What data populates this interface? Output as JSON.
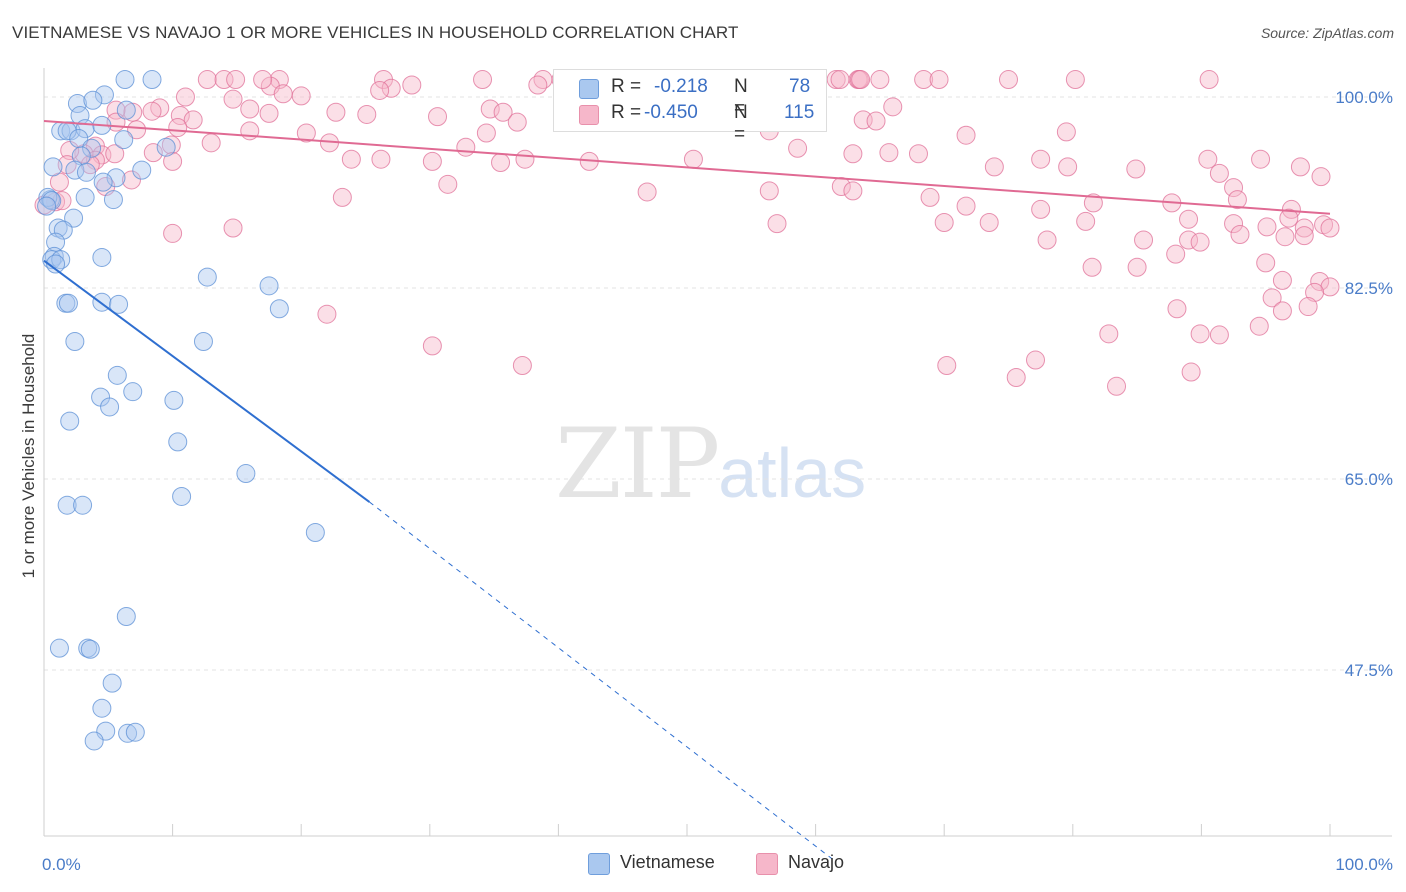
{
  "header": {
    "title": "VIETNAMESE VS NAVAJO 1 OR MORE VEHICLES IN HOUSEHOLD CORRELATION CHART",
    "source": "Source: ZipAtlas.com"
  },
  "watermark": {
    "zip": "ZIP",
    "atlas": "atlas"
  },
  "legend": {
    "rows": [
      {
        "r_label": "R =",
        "r_value": "-0.218",
        "n_label": "N =",
        "n_value": "78",
        "color": "#aac8ef"
      },
      {
        "r_label": "R =",
        "r_value": "-0.450",
        "n_label": "N =",
        "n_value": "115",
        "color": "#f6b7ca"
      }
    ]
  },
  "bottom_legend": [
    "Vietnamese",
    "Navajo"
  ],
  "chart_data": {
    "type": "scatter",
    "title": "VIETNAMESE VS NAVAJO 1 OR MORE VEHICLES IN HOUSEHOLD CORRELATION CHART",
    "xlabel": "",
    "ylabel": "1 or more Vehicles in Household",
    "xlim": [
      0,
      100
    ],
    "ylim": [
      30,
      100
    ],
    "x_tick_labels": [
      "0.0%",
      "100.0%"
    ],
    "y_ticks": [
      47.5,
      65.0,
      82.5,
      100.0
    ],
    "y_tick_labels": [
      "47.5%",
      "65.0%",
      "82.5%",
      "100.0%"
    ],
    "grid": true,
    "legend_position": "top-center",
    "series": [
      {
        "name": "Vietnamese",
        "color": "#5b8fd6",
        "fill": "#aac8ef",
        "trend": {
          "x": [
            0,
            25.3
          ],
          "y": [
            85.0,
            62.9
          ],
          "dash_to": [
            61.5,
            30.0
          ]
        },
        "points": [
          [
            6.3,
            101.6
          ],
          [
            8.4,
            101.6
          ],
          [
            4.7,
            100.2
          ],
          [
            2.6,
            99.4
          ],
          [
            3.8,
            99.7
          ],
          [
            2.8,
            98.3
          ],
          [
            6.4,
            98.8
          ],
          [
            1.3,
            96.9
          ],
          [
            2.1,
            96.9
          ],
          [
            3.2,
            97.1
          ],
          [
            1.8,
            96.9
          ],
          [
            2.7,
            96.2
          ],
          [
            4.5,
            97.4
          ],
          [
            6.2,
            96.1
          ],
          [
            3.7,
            95.3
          ],
          [
            9.5,
            95.4
          ],
          [
            2.9,
            94.6
          ],
          [
            0.7,
            93.6
          ],
          [
            2.4,
            93.3
          ],
          [
            5.6,
            92.6
          ],
          [
            7.6,
            93.3
          ],
          [
            4.6,
            92.2
          ],
          [
            3.3,
            93.1
          ],
          [
            0.5,
            90.6
          ],
          [
            0.3,
            90.8
          ],
          [
            0.6,
            90.5
          ],
          [
            3.2,
            90.8
          ],
          [
            5.4,
            90.6
          ],
          [
            0.2,
            90.0
          ],
          [
            1.1,
            88.0
          ],
          [
            2.3,
            88.9
          ],
          [
            1.5,
            87.8
          ],
          [
            0.9,
            86.7
          ],
          [
            4.5,
            85.3
          ],
          [
            0.8,
            85.4
          ],
          [
            0.6,
            85.1
          ],
          [
            1.3,
            85.1
          ],
          [
            0.9,
            84.7
          ],
          [
            12.7,
            83.5
          ],
          [
            17.5,
            82.7
          ],
          [
            1.7,
            81.1
          ],
          [
            1.9,
            81.1
          ],
          [
            4.5,
            81.2
          ],
          [
            5.8,
            81.0
          ],
          [
            18.3,
            80.6
          ],
          [
            2.4,
            77.6
          ],
          [
            12.4,
            77.6
          ],
          [
            5.7,
            74.5
          ],
          [
            4.4,
            72.5
          ],
          [
            6.9,
            73.0
          ],
          [
            10.1,
            72.2
          ],
          [
            5.1,
            71.6
          ],
          [
            2.0,
            70.3
          ],
          [
            10.4,
            68.4
          ],
          [
            15.7,
            65.5
          ],
          [
            10.7,
            63.4
          ],
          [
            1.8,
            62.6
          ],
          [
            3.0,
            62.6
          ],
          [
            21.1,
            60.1
          ],
          [
            6.4,
            52.4
          ],
          [
            1.2,
            49.5
          ],
          [
            3.4,
            49.5
          ],
          [
            3.6,
            49.4
          ],
          [
            5.3,
            46.3
          ],
          [
            4.5,
            44.0
          ],
          [
            4.8,
            41.9
          ],
          [
            6.5,
            41.7
          ],
          [
            7.1,
            41.8
          ],
          [
            3.9,
            41.0
          ]
        ]
      },
      {
        "name": "Navajo",
        "color": "#e07098",
        "fill": "#f6b7ca",
        "trend": {
          "x": [
            0,
            100
          ],
          "y": [
            97.8,
            89.3
          ]
        },
        "points": [
          [
            12.7,
            101.6
          ],
          [
            14.0,
            101.6
          ],
          [
            14.9,
            101.6
          ],
          [
            18.3,
            101.6
          ],
          [
            17.6,
            101.0
          ],
          [
            17.0,
            101.6
          ],
          [
            26.4,
            101.6
          ],
          [
            28.6,
            101.1
          ],
          [
            34.1,
            101.6
          ],
          [
            38.8,
            101.6
          ],
          [
            42.0,
            101.6
          ],
          [
            40.2,
            101.6
          ],
          [
            52.2,
            101.6
          ],
          [
            54.0,
            101.6
          ],
          [
            61.6,
            101.6
          ],
          [
            61.9,
            101.6
          ],
          [
            63.3,
            101.6
          ],
          [
            63.4,
            101.6
          ],
          [
            65.0,
            101.6
          ],
          [
            68.4,
            101.6
          ],
          [
            69.6,
            101.6
          ],
          [
            75.0,
            101.6
          ],
          [
            80.2,
            101.6
          ],
          [
            90.6,
            101.6
          ],
          [
            40.3,
            101.6
          ],
          [
            55.7,
            101.6
          ],
          [
            63.5,
            101.6
          ],
          [
            55.6,
            101.6
          ],
          [
            50.2,
            101.6
          ],
          [
            43.0,
            101.6
          ],
          [
            27.0,
            100.8
          ],
          [
            26.1,
            100.6
          ],
          [
            38.4,
            101.1
          ],
          [
            18.6,
            100.3
          ],
          [
            20.0,
            100.1
          ],
          [
            14.7,
            99.8
          ],
          [
            11.0,
            100.0
          ],
          [
            17.5,
            98.5
          ],
          [
            16.0,
            98.9
          ],
          [
            9.0,
            99.0
          ],
          [
            10.6,
            98.3
          ],
          [
            8.4,
            98.7
          ],
          [
            6.9,
            98.6
          ],
          [
            5.6,
            98.8
          ],
          [
            5.6,
            97.7
          ],
          [
            11.6,
            97.9
          ],
          [
            22.7,
            98.6
          ],
          [
            25.1,
            98.4
          ],
          [
            30.6,
            98.2
          ],
          [
            34.7,
            98.9
          ],
          [
            35.7,
            98.6
          ],
          [
            36.8,
            97.7
          ],
          [
            10.4,
            97.2
          ],
          [
            7.2,
            97.0
          ],
          [
            16.0,
            96.9
          ],
          [
            20.4,
            96.7
          ],
          [
            34.4,
            96.7
          ],
          [
            56.4,
            96.9
          ],
          [
            58.5,
            97.7
          ],
          [
            63.7,
            97.9
          ],
          [
            64.7,
            97.8
          ],
          [
            66.0,
            99.1
          ],
          [
            71.7,
            96.5
          ],
          [
            79.5,
            96.8
          ],
          [
            4.0,
            95.5
          ],
          [
            9.9,
            95.6
          ],
          [
            13.0,
            95.8
          ],
          [
            22.2,
            95.8
          ],
          [
            26.2,
            94.3
          ],
          [
            32.8,
            95.4
          ],
          [
            37.4,
            94.3
          ],
          [
            58.6,
            95.3
          ],
          [
            65.7,
            94.9
          ],
          [
            3.1,
            94.8
          ],
          [
            4.5,
            94.7
          ],
          [
            5.5,
            94.8
          ],
          [
            2.0,
            95.1
          ],
          [
            1.8,
            93.8
          ],
          [
            4.0,
            94.2
          ],
          [
            3.6,
            93.8
          ],
          [
            8.5,
            94.9
          ],
          [
            10.0,
            94.1
          ],
          [
            23.9,
            94.3
          ],
          [
            30.2,
            94.1
          ],
          [
            35.5,
            94.0
          ],
          [
            42.4,
            94.1
          ],
          [
            50.5,
            94.3
          ],
          [
            62.9,
            94.8
          ],
          [
            68.0,
            94.8
          ],
          [
            73.9,
            93.6
          ],
          [
            77.5,
            94.3
          ],
          [
            79.6,
            93.6
          ],
          [
            90.5,
            94.3
          ],
          [
            94.6,
            94.3
          ],
          [
            84.9,
            93.4
          ],
          [
            91.4,
            93.0
          ],
          [
            99.3,
            92.7
          ],
          [
            97.7,
            93.6
          ],
          [
            92.5,
            91.7
          ],
          [
            62.0,
            91.8
          ],
          [
            31.4,
            92.0
          ],
          [
            1.2,
            92.2
          ],
          [
            4.8,
            91.8
          ],
          [
            6.8,
            92.4
          ],
          [
            23.2,
            90.8
          ],
          [
            0.9,
            90.4
          ],
          [
            0.0,
            90.1
          ],
          [
            1.4,
            90.5
          ],
          [
            56.4,
            91.4
          ],
          [
            46.9,
            91.3
          ],
          [
            62.9,
            91.4
          ],
          [
            68.9,
            90.8
          ],
          [
            71.7,
            90.0
          ],
          [
            81.6,
            90.3
          ],
          [
            87.7,
            90.3
          ],
          [
            92.8,
            90.6
          ],
          [
            97.0,
            89.7
          ],
          [
            96.8,
            88.9
          ],
          [
            98.0,
            88.0
          ],
          [
            99.5,
            88.3
          ],
          [
            100.0,
            88.0
          ],
          [
            95.1,
            88.1
          ],
          [
            92.5,
            88.4
          ],
          [
            89.0,
            88.8
          ],
          [
            81.0,
            88.6
          ],
          [
            77.5,
            89.7
          ],
          [
            73.5,
            88.5
          ],
          [
            70.0,
            88.5
          ],
          [
            78.0,
            86.9
          ],
          [
            85.5,
            86.9
          ],
          [
            89.0,
            86.9
          ],
          [
            93.0,
            87.4
          ],
          [
            96.5,
            87.2
          ],
          [
            98.0,
            87.3
          ],
          [
            14.7,
            88.0
          ],
          [
            10.0,
            87.5
          ],
          [
            57.0,
            88.4
          ],
          [
            81.5,
            84.4
          ],
          [
            85.0,
            84.4
          ],
          [
            88.0,
            85.6
          ],
          [
            89.9,
            86.7
          ],
          [
            95.0,
            84.8
          ],
          [
            96.3,
            83.2
          ],
          [
            99.2,
            83.1
          ],
          [
            100.0,
            82.6
          ],
          [
            95.5,
            81.6
          ],
          [
            98.8,
            82.1
          ],
          [
            88.1,
            80.6
          ],
          [
            22.0,
            80.1
          ],
          [
            30.2,
            77.2
          ],
          [
            91.4,
            78.2
          ],
          [
            94.5,
            79.0
          ],
          [
            98.3,
            80.8
          ],
          [
            96.3,
            80.4
          ],
          [
            75.6,
            74.3
          ],
          [
            70.2,
            75.4
          ],
          [
            37.2,
            75.4
          ],
          [
            89.9,
            78.3
          ],
          [
            89.2,
            74.8
          ],
          [
            83.4,
            73.5
          ],
          [
            82.8,
            78.3
          ],
          [
            77.1,
            75.9
          ]
        ]
      }
    ]
  }
}
